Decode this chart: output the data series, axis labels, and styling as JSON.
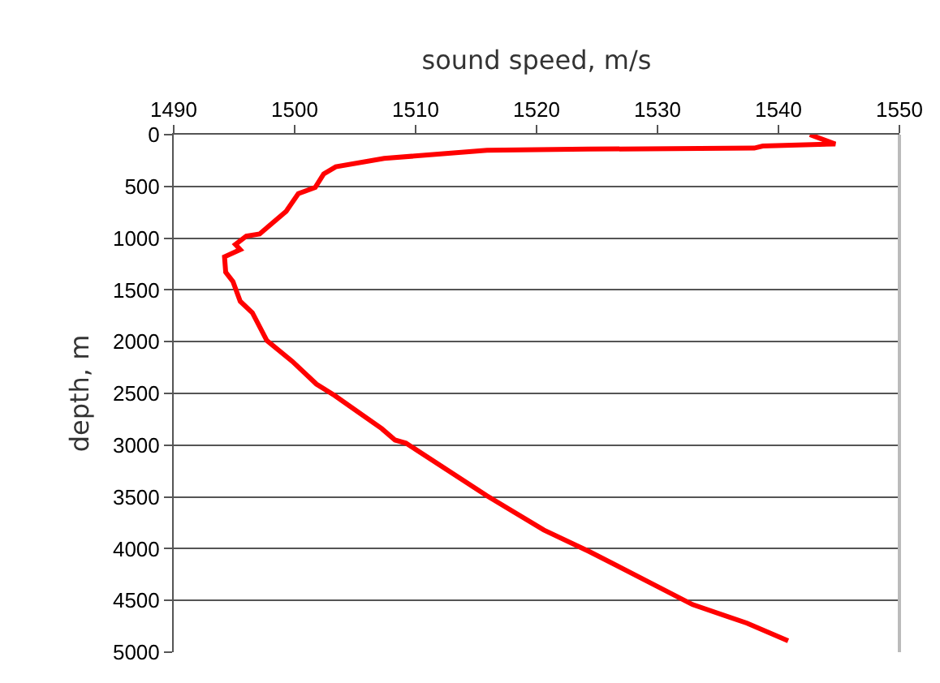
{
  "chart_data": {
    "type": "line",
    "xlabel": "sound speed, m/s",
    "ylabel": "depth, m",
    "series": [
      {
        "color": "#ff0000",
        "x": [
          1542.6,
          1544.7,
          1538.7,
          1538.0,
          1524.3,
          1515.9,
          1507.4,
          1503.4,
          1502.4,
          1501.7,
          1500.3,
          1499.3,
          1498.0,
          1497.1,
          1496.0,
          1495.1,
          1495.5,
          1494.2,
          1494.3,
          1494.9,
          1495.5,
          1496.5,
          1497.7,
          1499.8,
          1501.8,
          1503.3,
          1507.2,
          1508.3,
          1509.2,
          1515.9,
          1520.6,
          1524.4,
          1532.9,
          1537.4,
          1540.8
        ],
        "values": [
          0,
          90,
          110,
          130,
          140,
          150,
          230,
          310,
          380,
          510,
          570,
          740,
          870,
          960,
          980,
          1060,
          1110,
          1180,
          1330,
          1420,
          1610,
          1720,
          1990,
          2190,
          2410,
          2520,
          2840,
          2950,
          2980,
          3490,
          3820,
          4030,
          4540,
          4720,
          4890
        ]
      }
    ],
    "xlim": [
      1490,
      1550
    ],
    "xticks": [
      1490,
      1500,
      1510,
      1520,
      1530,
      1540,
      1550
    ],
    "ylim": [
      5000,
      0
    ],
    "yticks": [
      0,
      500,
      1000,
      1500,
      2000,
      2500,
      3000,
      3500,
      4000,
      4500,
      5000
    ],
    "grid": "y",
    "marker": "none",
    "line_style": "solid"
  }
}
